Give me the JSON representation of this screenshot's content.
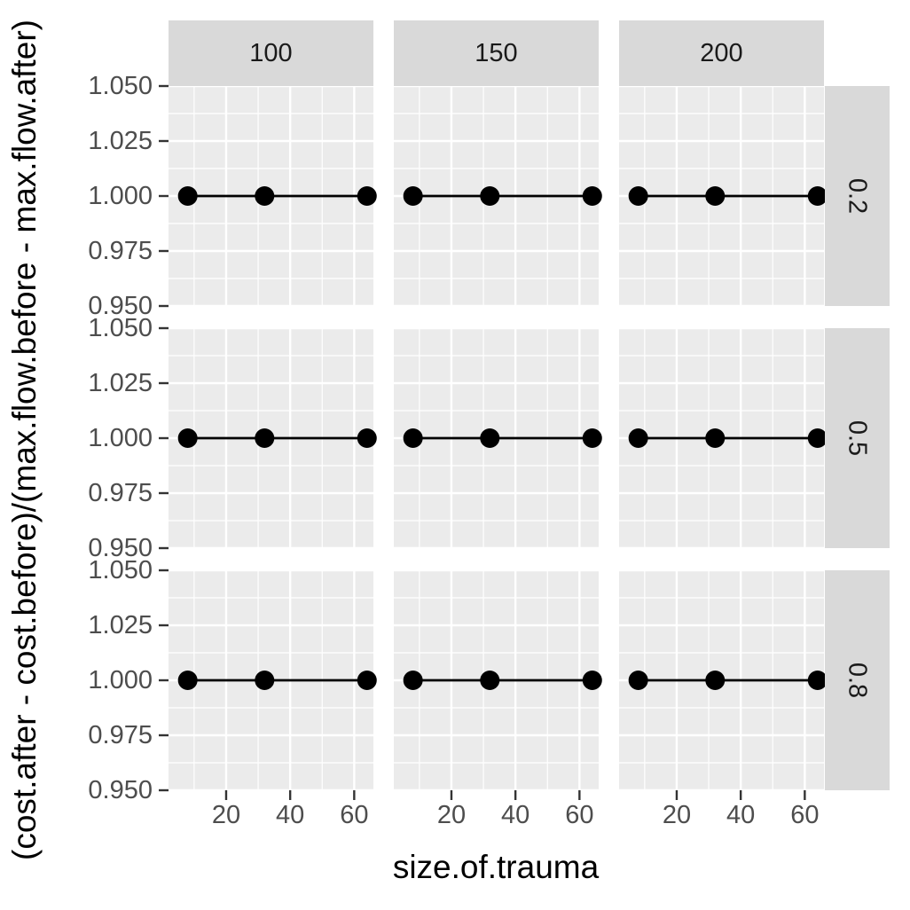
{
  "chart_data": {
    "type": "line",
    "facet_cols": [
      "100",
      "150",
      "200"
    ],
    "facet_rows": [
      "0.2",
      "0.5",
      "0.8"
    ],
    "xlabel": "size.of.trauma",
    "ylabel": "(cost.after - cost.before)/(max.flow.before - max.flow.after)",
    "xlim": [
      2,
      66
    ],
    "ylim": [
      0.95,
      1.05
    ],
    "x_ticks": [
      20,
      40,
      60
    ],
    "y_ticks": [
      "0.950",
      "0.975",
      "1.000",
      "1.025",
      "1.050"
    ],
    "grid": true,
    "panels": [
      {
        "col": "100",
        "row": "0.2",
        "x": [
          8,
          32,
          64
        ],
        "y": [
          1,
          1,
          1
        ]
      },
      {
        "col": "150",
        "row": "0.2",
        "x": [
          8,
          32,
          64
        ],
        "y": [
          1,
          1,
          1
        ]
      },
      {
        "col": "200",
        "row": "0.2",
        "x": [
          8,
          32,
          64
        ],
        "y": [
          1,
          1,
          1
        ]
      },
      {
        "col": "100",
        "row": "0.5",
        "x": [
          8,
          32,
          64
        ],
        "y": [
          1,
          1,
          1
        ]
      },
      {
        "col": "150",
        "row": "0.5",
        "x": [
          8,
          32,
          64
        ],
        "y": [
          1,
          1,
          1
        ]
      },
      {
        "col": "200",
        "row": "0.5",
        "x": [
          8,
          32,
          64
        ],
        "y": [
          1,
          1,
          1
        ]
      },
      {
        "col": "100",
        "row": "0.8",
        "x": [
          8,
          32,
          64
        ],
        "y": [
          1,
          1,
          1
        ]
      },
      {
        "col": "150",
        "row": "0.8",
        "x": [
          8,
          32,
          64
        ],
        "y": [
          1,
          1,
          1
        ]
      },
      {
        "col": "200",
        "row": "0.8",
        "x": [
          8,
          32,
          64
        ],
        "y": [
          1,
          1,
          1
        ]
      }
    ]
  },
  "colors": {
    "panel_bg": "#ebebeb",
    "strip_bg": "#d9d9d9",
    "grid_major": "#ffffff",
    "series": "#000000",
    "tick": "#333333"
  }
}
